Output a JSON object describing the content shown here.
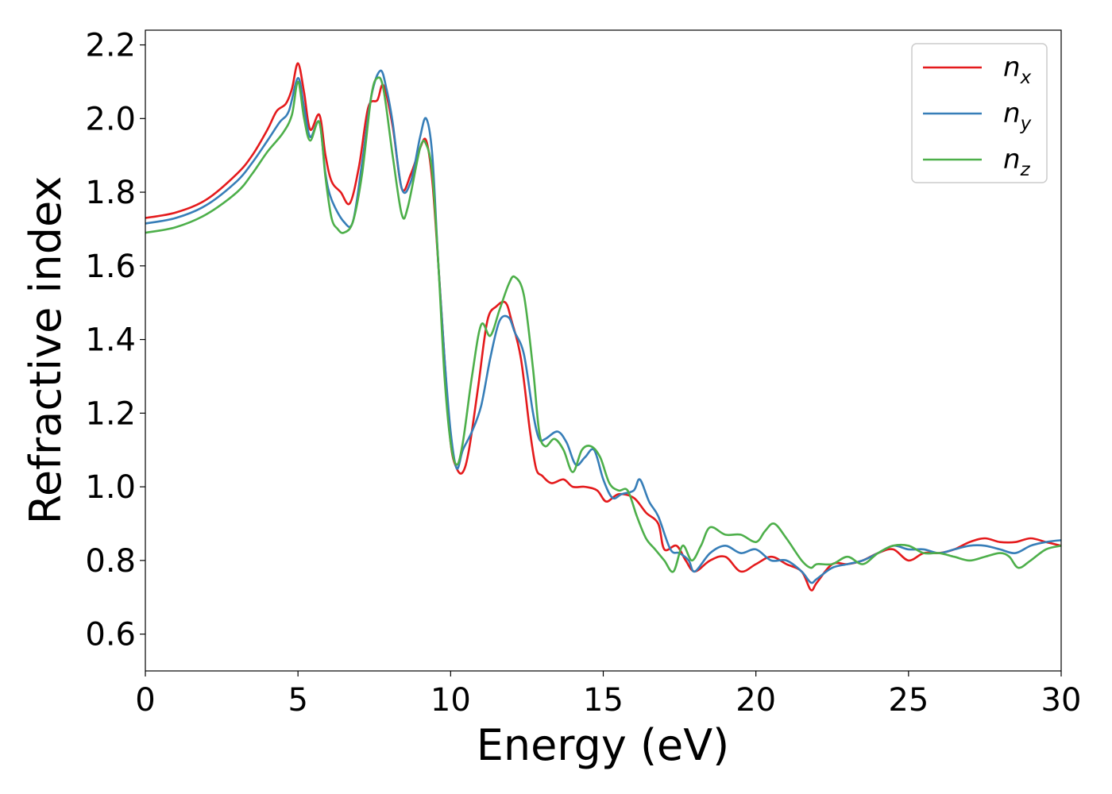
{
  "chart_data": {
    "type": "line",
    "title": "",
    "xlabel": "Energy (eV)",
    "ylabel": "Refractive index",
    "xlim": [
      0,
      30
    ],
    "ylim": [
      0.5,
      2.24
    ],
    "xticks": [
      0,
      5,
      10,
      15,
      20,
      25,
      30
    ],
    "yticks": [
      0.6,
      0.8,
      1.0,
      1.2,
      1.4,
      1.6,
      1.8,
      2.0,
      2.2
    ],
    "xtick_labels": [
      "0",
      "5",
      "10",
      "15",
      "20",
      "25",
      "30"
    ],
    "ytick_labels": [
      "0.6",
      "0.8",
      "1.0",
      "1.2",
      "1.4",
      "1.6",
      "1.8",
      "2.0",
      "2.2"
    ],
    "grid": false,
    "legend_position": "top-right",
    "series": [
      {
        "name": "n_x",
        "label_base": "n",
        "label_sub": "x",
        "color": "#e41a1c",
        "x": [
          0,
          1,
          2,
          3,
          3.5,
          4,
          4.3,
          4.6,
          4.8,
          5,
          5.2,
          5.4,
          5.7,
          5.9,
          6.1,
          6.4,
          6.7,
          7,
          7.3,
          7.6,
          7.8,
          8.1,
          8.4,
          8.7,
          9.0,
          9.2,
          9.4,
          9.6,
          9.8,
          10.0,
          10.2,
          10.4,
          10.6,
          10.9,
          11.2,
          11.5,
          11.8,
          12.0,
          12.3,
          12.6,
          12.8,
          13.0,
          13.3,
          13.7,
          14.0,
          14.4,
          14.8,
          15.1,
          15.5,
          16.0,
          16.4,
          16.8,
          17.0,
          17.4,
          17.7,
          18.0,
          18.5,
          19.0,
          19.5,
          20.0,
          20.5,
          21.0,
          21.5,
          21.8,
          22.0,
          22.5,
          23.0,
          23.5,
          24.0,
          24.5,
          25.0,
          25.5,
          26.0,
          26.5,
          27.0,
          27.5,
          28.0,
          28.5,
          29.0,
          29.5,
          30.0
        ],
        "y": [
          1.73,
          1.745,
          1.78,
          1.85,
          1.9,
          1.97,
          2.02,
          2.04,
          2.08,
          2.15,
          2.07,
          1.97,
          2.01,
          1.9,
          1.83,
          1.8,
          1.77,
          1.87,
          2.03,
          2.05,
          2.09,
          1.98,
          1.81,
          1.85,
          1.92,
          1.94,
          1.83,
          1.6,
          1.35,
          1.12,
          1.05,
          1.04,
          1.1,
          1.27,
          1.45,
          1.49,
          1.5,
          1.45,
          1.35,
          1.15,
          1.05,
          1.03,
          1.01,
          1.02,
          1.0,
          1.0,
          0.99,
          0.96,
          0.98,
          0.97,
          0.93,
          0.9,
          0.83,
          0.84,
          0.8,
          0.77,
          0.8,
          0.81,
          0.77,
          0.79,
          0.81,
          0.79,
          0.77,
          0.72,
          0.74,
          0.79,
          0.79,
          0.8,
          0.82,
          0.83,
          0.8,
          0.82,
          0.82,
          0.83,
          0.85,
          0.86,
          0.85,
          0.85,
          0.86,
          0.85,
          0.84
        ]
      },
      {
        "name": "n_y",
        "label_base": "n",
        "label_sub": "y",
        "color": "#377eb8",
        "x": [
          0,
          1,
          2,
          3,
          3.5,
          4,
          4.4,
          4.7,
          5.0,
          5.2,
          5.4,
          5.7,
          5.9,
          6.1,
          6.5,
          6.8,
          7.1,
          7.4,
          7.7,
          7.9,
          8.1,
          8.4,
          8.7,
          9.0,
          9.2,
          9.4,
          9.6,
          9.8,
          10.0,
          10.2,
          10.4,
          10.7,
          11.0,
          11.3,
          11.6,
          11.9,
          12.1,
          12.4,
          12.7,
          12.9,
          13.1,
          13.5,
          13.8,
          14.1,
          14.4,
          14.7,
          15.0,
          15.3,
          15.6,
          16.0,
          16.2,
          16.5,
          16.8,
          17.2,
          17.5,
          17.8,
          18.0,
          18.5,
          19.0,
          19.5,
          20.0,
          20.5,
          21.0,
          21.5,
          21.8,
          22.0,
          22.5,
          23.0,
          23.5,
          24.0,
          24.5,
          25.0,
          25.5,
          26.0,
          26.5,
          27.0,
          27.5,
          28.0,
          28.5,
          29.0,
          29.5,
          30.0
        ],
        "y": [
          1.715,
          1.73,
          1.765,
          1.83,
          1.88,
          1.94,
          1.99,
          2.02,
          2.11,
          2.03,
          1.95,
          1.99,
          1.85,
          1.78,
          1.72,
          1.72,
          1.88,
          2.06,
          2.13,
          2.08,
          1.99,
          1.81,
          1.83,
          1.95,
          2.0,
          1.9,
          1.6,
          1.35,
          1.15,
          1.05,
          1.1,
          1.15,
          1.22,
          1.35,
          1.45,
          1.46,
          1.42,
          1.36,
          1.2,
          1.13,
          1.13,
          1.15,
          1.12,
          1.06,
          1.08,
          1.1,
          1.02,
          0.97,
          0.98,
          0.99,
          1.02,
          0.96,
          0.92,
          0.83,
          0.82,
          0.8,
          0.77,
          0.82,
          0.84,
          0.82,
          0.83,
          0.8,
          0.8,
          0.77,
          0.74,
          0.75,
          0.78,
          0.79,
          0.8,
          0.82,
          0.84,
          0.83,
          0.83,
          0.82,
          0.83,
          0.84,
          0.84,
          0.83,
          0.82,
          0.84,
          0.85,
          0.855
        ]
      },
      {
        "name": "n_z",
        "label_base": "n",
        "label_sub": "z",
        "color": "#4daf4a",
        "x": [
          0,
          1,
          2,
          3,
          3.5,
          4,
          4.5,
          4.8,
          5.0,
          5.2,
          5.4,
          5.7,
          5.9,
          6.1,
          6.3,
          6.5,
          6.8,
          7.1,
          7.4,
          7.6,
          7.8,
          8.1,
          8.4,
          8.6,
          9.0,
          9.2,
          9.4,
          9.6,
          9.8,
          10.0,
          10.2,
          10.4,
          10.7,
          11.0,
          11.3,
          11.6,
          11.9,
          12.1,
          12.4,
          12.7,
          12.9,
          13.1,
          13.4,
          13.7,
          14.0,
          14.3,
          14.6,
          14.9,
          15.2,
          15.5,
          15.8,
          16.1,
          16.4,
          16.7,
          17.0,
          17.3,
          17.6,
          17.9,
          18.2,
          18.5,
          19.0,
          19.5,
          20.0,
          20.3,
          20.6,
          21.0,
          21.5,
          21.8,
          22.0,
          22.5,
          23.0,
          23.5,
          24.0,
          24.5,
          25.0,
          25.5,
          26.0,
          26.5,
          27.0,
          27.5,
          28.0,
          28.3,
          28.6,
          29.0,
          29.5,
          30.0
        ],
        "y": [
          1.69,
          1.705,
          1.74,
          1.8,
          1.85,
          1.91,
          1.96,
          2.01,
          2.1,
          2.0,
          1.94,
          1.99,
          1.84,
          1.73,
          1.7,
          1.69,
          1.72,
          1.85,
          2.06,
          2.11,
          2.08,
          1.9,
          1.74,
          1.76,
          1.92,
          1.93,
          1.85,
          1.6,
          1.3,
          1.12,
          1.06,
          1.12,
          1.3,
          1.44,
          1.41,
          1.48,
          1.55,
          1.57,
          1.52,
          1.32,
          1.15,
          1.11,
          1.13,
          1.1,
          1.04,
          1.1,
          1.11,
          1.08,
          1.01,
          0.99,
          0.99,
          0.92,
          0.86,
          0.83,
          0.8,
          0.77,
          0.84,
          0.8,
          0.84,
          0.89,
          0.87,
          0.87,
          0.85,
          0.88,
          0.9,
          0.86,
          0.8,
          0.78,
          0.79,
          0.79,
          0.81,
          0.79,
          0.82,
          0.84,
          0.84,
          0.82,
          0.82,
          0.81,
          0.8,
          0.81,
          0.82,
          0.81,
          0.78,
          0.8,
          0.83,
          0.84
        ]
      }
    ]
  }
}
